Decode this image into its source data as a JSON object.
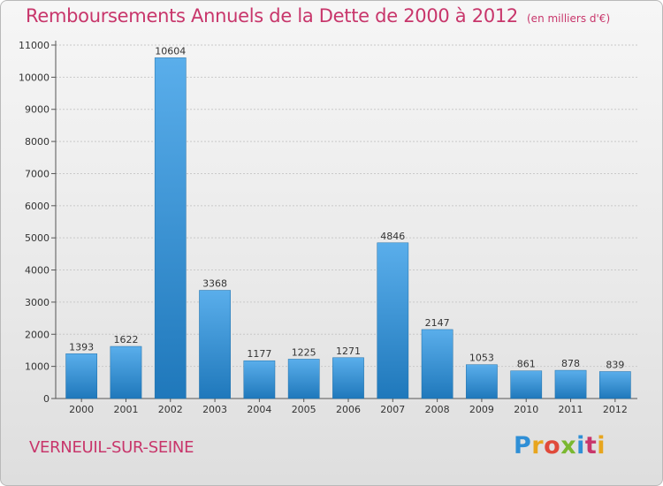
{
  "header": {
    "title": "Remboursements Annuels de la Dette de 2000 à 2012",
    "unit": "(en milliers d'€)"
  },
  "footer": {
    "city": "VERNEUIL-SUR-SEINE",
    "logo": "Proxiti",
    "logo_letters": [
      {
        "ch": "P",
        "color": "#2f8fd6"
      },
      {
        "ch": "r",
        "color": "#e8a51e"
      },
      {
        "ch": "o",
        "color": "#e04a3a"
      },
      {
        "ch": "x",
        "color": "#7ab830"
      },
      {
        "ch": "i",
        "color": "#2f8fd6"
      },
      {
        "ch": "t",
        "color": "#c8366b"
      },
      {
        "ch": "i",
        "color": "#e8a51e"
      }
    ]
  },
  "colors": {
    "title": "#c8366b",
    "bar_light": "#5aaeeb",
    "bar_dark": "#1f78bb"
  },
  "chart_data": {
    "type": "bar",
    "title": "Remboursements Annuels de la Dette de 2000 à 2012",
    "xlabel": "",
    "ylabel": "",
    "ylim": [
      0,
      11000
    ],
    "yticks": [
      0,
      1000,
      2000,
      3000,
      4000,
      5000,
      6000,
      7000,
      8000,
      9000,
      10000,
      11000
    ],
    "grid": true,
    "categories": [
      "2000",
      "2001",
      "2002",
      "2003",
      "2004",
      "2005",
      "2006",
      "2007",
      "2008",
      "2009",
      "2010",
      "2011",
      "2012"
    ],
    "values": [
      1393,
      1622,
      10604,
      3368,
      1177,
      1225,
      1271,
      4846,
      2147,
      1053,
      861,
      878,
      839
    ]
  }
}
